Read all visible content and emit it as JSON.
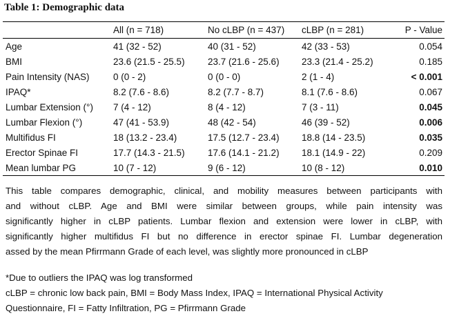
{
  "title": "Table 1: Demographic data",
  "table": {
    "headers": [
      "",
      "All (n = 718)",
      "No cLBP (n = 437)",
      "cLBP (n = 281)",
      "P - Value"
    ],
    "rows": [
      {
        "label": "Age",
        "all": "41 (32 - 52)",
        "no": "40 (31 - 52)",
        "clbp": "42 (33 - 53)",
        "p": "0.054",
        "sig": false
      },
      {
        "label": "BMI",
        "all": "23.6 (21.5 - 25.5)",
        "no": "23.7 (21.6 - 25.6)",
        "clbp": "23.3 (21.4 - 25.2)",
        "p": "0.185",
        "sig": false
      },
      {
        "label": "Pain Intensity (NAS)",
        "all": "0 (0 - 2)",
        "no": "0 (0 - 0)",
        "clbp": "2 (1 - 4)",
        "p": "< 0.001",
        "sig": true
      },
      {
        "label": "IPAQ*",
        "all": "8.2 (7.6 - 8.6)",
        "no": "8.2 (7.7 - 8.7)",
        "clbp": "8.1 (7.6 - 8.6)",
        "p": "0.067",
        "sig": false
      },
      {
        "label": "Lumbar Extension (°)",
        "all": "7 (4 - 12)",
        "no": "8 (4 - 12)",
        "clbp": "7 (3 - 11)",
        "p": "0.045",
        "sig": true
      },
      {
        "label": "Lumbar Flexion (°)",
        "all": "47 (41 - 53.9)",
        "no": "48 (42 - 54)",
        "clbp": "46 (39 - 52)",
        "p": "0.006",
        "sig": true
      },
      {
        "label": "Multifidus FI",
        "all": "18 (13.2 - 23.4)",
        "no": "17.5 (12.7 - 23.4)",
        "clbp": "18.8 (14 - 23.5)",
        "p": "0.035",
        "sig": true
      },
      {
        "label": "Erector Spinae FI",
        "all": "17.7 (14.3 - 21.5)",
        "no": "17.6 (14.1 - 21.2)",
        "clbp": "18.1 (14.9 - 22)",
        "p": "0.209",
        "sig": false
      },
      {
        "label": "Mean lumbar PG",
        "all": "10 (7 - 12)",
        "no": "9 (6 - 12)",
        "clbp": "10 (8 - 12)",
        "p": "0.010",
        "sig": true
      }
    ]
  },
  "paragraph_lines": [
    "This table compares demographic, clinical, and mobility measures between participants with",
    "and without cLBP. Age and BMI were similar between groups, while pain intensity was",
    "significantly higher in cLBP patients. Lumbar flexion and extension were lower in cLBP, with",
    "significantly higher multifidus FI but no difference in erector spinae FI. Lumbar degeneration",
    "assed by the mean Pfirrmann Grade of each level, was slightly more pronounced in cLBP"
  ],
  "notes": [
    "*Due to outliers the IPAQ was log transformed",
    "cLBP = chronic low back pain, BMI = Body Mass Index, IPAQ = International Physical Activity",
    "Questionnaire, FI = Fatty Infiltration, PG = Pfirrmann Grade"
  ]
}
